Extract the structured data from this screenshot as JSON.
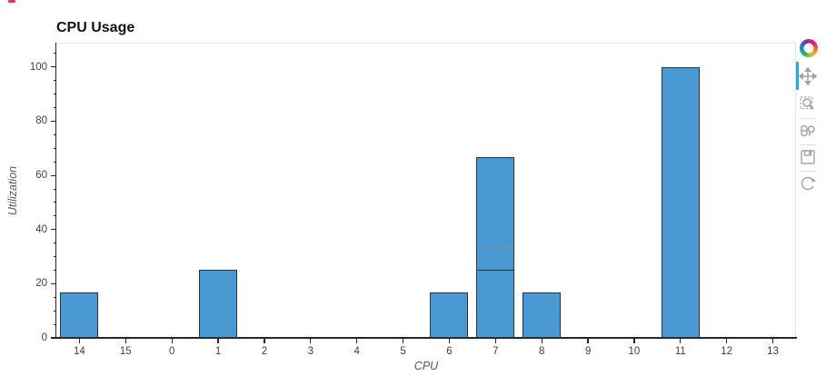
{
  "page": {
    "corner_artifact_color": "#e8336d"
  },
  "chart_data": {
    "type": "bar",
    "title": "CPU Usage",
    "xlabel": "CPU",
    "ylabel": "Utilization",
    "categories": [
      "14",
      "15",
      "0",
      "1",
      "2",
      "3",
      "4",
      "5",
      "6",
      "7",
      "8",
      "9",
      "10",
      "11",
      "12",
      "13"
    ],
    "values": [
      16.7,
      0,
      0,
      25,
      0,
      0,
      0,
      0,
      16.7,
      66.7,
      16.7,
      0,
      0,
      100,
      0,
      0
    ],
    "stack_segments": {
      "7": [
        25,
        8.3,
        33.4
      ]
    },
    "dividers": {
      "7": [
        {
          "value": 25,
          "color": "#1d2a34"
        },
        {
          "value": 33.3,
          "color": "#7e919e"
        }
      ]
    },
    "yticks": [
      0,
      20,
      40,
      60,
      80,
      100
    ],
    "minor_tick_step": 5,
    "ylim": [
      0,
      109
    ],
    "grid": false,
    "legend": "none",
    "bar_fill": "#4a99d3",
    "bar_stroke": "#28323a"
  },
  "toolbar": {
    "active_tool": "pan",
    "active_indicator_color": "#26a8df",
    "icon_color": "#a3a3a3",
    "tools": [
      {
        "label": "bokeh-logo"
      },
      {
        "label": "pan"
      },
      {
        "label": "box-zoom"
      },
      {
        "label": "wheel-zoom"
      },
      {
        "label": "save"
      },
      {
        "label": "reset"
      }
    ]
  }
}
